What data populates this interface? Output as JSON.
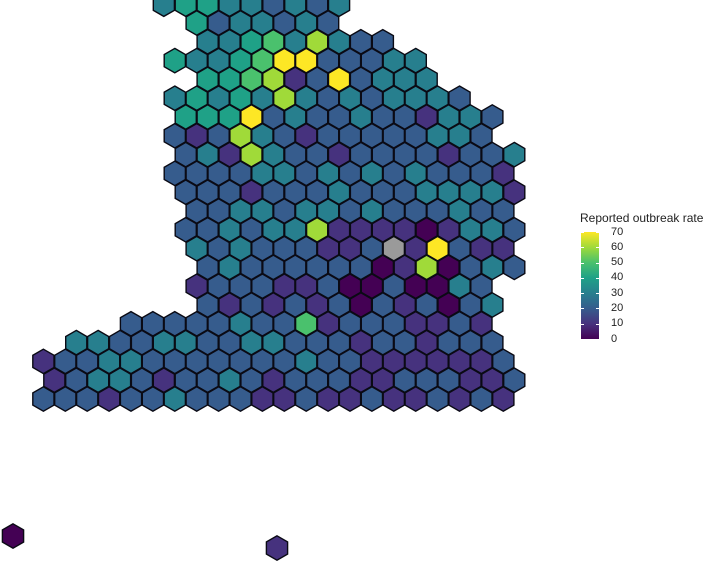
{
  "legend": {
    "title": "Reported outbreak rate",
    "ticks": [
      70,
      60,
      50,
      40,
      30,
      20,
      10,
      0
    ],
    "min": 0,
    "max": 70
  },
  "colors": {
    "scale": [
      "#440154",
      "#46327e",
      "#365c8d",
      "#277f8e",
      "#1fa187",
      "#4ac16d",
      "#a0da39",
      "#fde725"
    ],
    "missing": "#9a9a9a",
    "outline": "#0a0a14"
  },
  "map_data": {
    "type": "hex-cartogram",
    "value_field": "Reported outbreak rate",
    "missing_cells": 1
  }
}
